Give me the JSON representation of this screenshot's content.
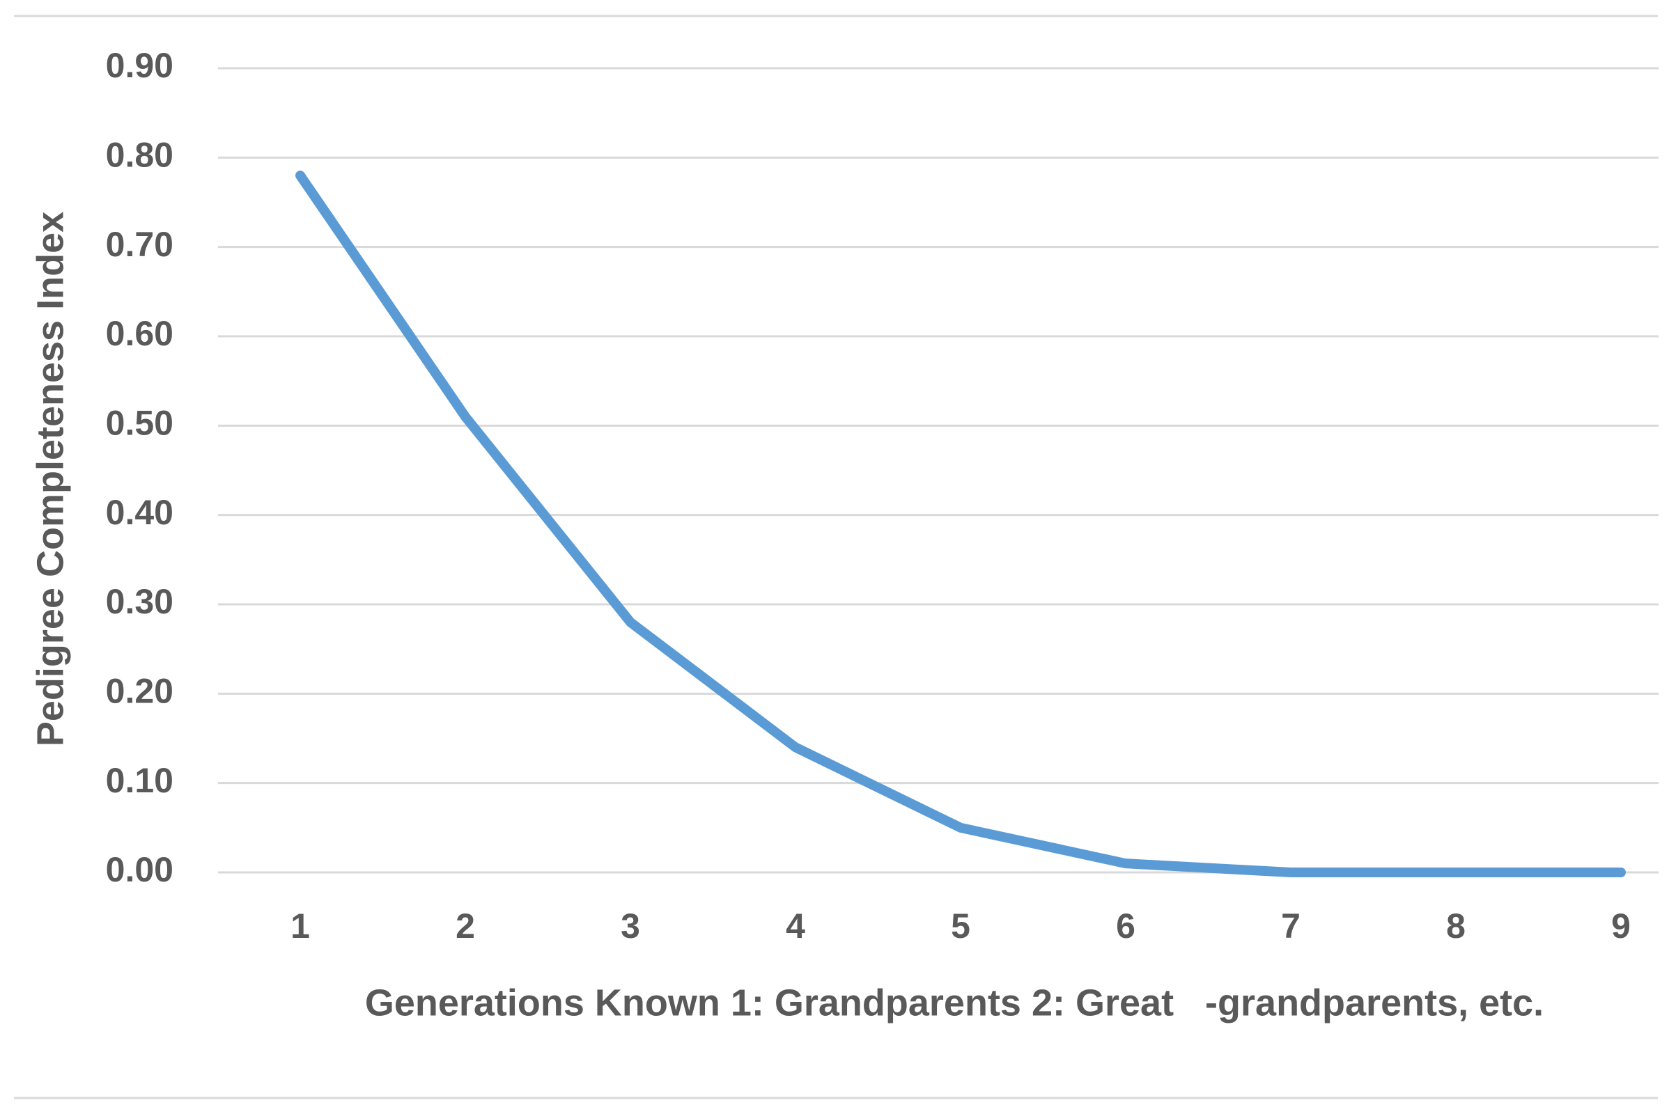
{
  "chart_data": {
    "type": "line",
    "x_label": "Generations Known 1: Grandparents 2: Great   -grandparents, etc.",
    "y_label": "Pedigree Completeness Index",
    "categories": [
      "1",
      "2",
      "3",
      "4",
      "5",
      "6",
      "7",
      "8",
      "9"
    ],
    "series": [
      {
        "color": "#5b9bd5",
        "values": [
          0.78,
          0.51,
          0.28,
          0.14,
          0.05,
          0.01,
          0.0,
          0.0,
          0.0
        ]
      }
    ],
    "ylim": [
      0,
      0.9
    ],
    "yticks": [
      {
        "value": 0,
        "label": "0.00"
      },
      {
        "value": 0.1,
        "label": "0.10"
      },
      {
        "value": 0.2,
        "label": "0.20"
      },
      {
        "value": 0.3,
        "label": "0.30"
      },
      {
        "value": 0.4,
        "label": "0.40"
      },
      {
        "value": 0.5,
        "label": "0.50"
      },
      {
        "value": 0.6,
        "label": "0.60"
      },
      {
        "value": 0.7,
        "label": "0.70"
      },
      {
        "value": 0.8,
        "label": "0.80"
      },
      {
        "value": 0.9,
        "label": "0.90"
      }
    ],
    "grid": true
  }
}
